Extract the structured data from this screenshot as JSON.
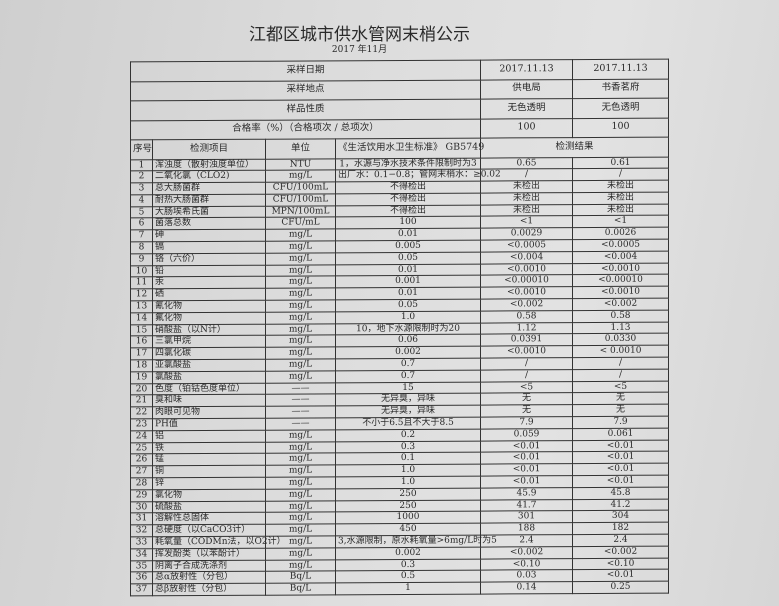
{
  "title": "江都区城市供水管网末梢公示",
  "subtitle": "2017 年11月",
  "meta": [
    {
      "label": "采样日期",
      "v1": "2017.11.13",
      "v2": "2017.11.13"
    },
    {
      "label": "采样地点",
      "v1": "供电局",
      "v2": "书香茗府"
    },
    {
      "label": "样品性质",
      "v1": "无色透明",
      "v2": "无色透明"
    },
    {
      "label": "合格率（%）（合格项次 / 总项次）",
      "v1": "100",
      "v2": "100"
    }
  ],
  "headers": {
    "no": "序号",
    "item": "检测项目",
    "unit": "单位",
    "standard": "《生活饮用水卫生标准》 GB5749",
    "result": "检测结果"
  },
  "rows": [
    [
      "1",
      "浑浊度（散射浊度单位）",
      "NTU",
      "1，水源与净水技术条件限制时为3",
      "0.65",
      "0.61"
    ],
    [
      "2",
      "二氧化氯（CLO2)",
      "mg/L",
      "出厂水：0.1−0.8；管网末梢水：≥0.02",
      "/",
      "/"
    ],
    [
      "3",
      "总大肠菌群",
      "CFU/100mL",
      "不得检出",
      "未检出",
      "未检出"
    ],
    [
      "4",
      "耐热大肠菌群",
      "CFU/100mL",
      "不得检出",
      "未检出",
      "未检出"
    ],
    [
      "5",
      "大肠埃希氏菌",
      "MPN/100mL",
      "不得检出",
      "未检出",
      "未检出"
    ],
    [
      "6",
      "菌落总数",
      "CFU/mL",
      "100",
      "<1",
      "<1"
    ],
    [
      "7",
      "砷",
      "mg/L",
      "0.01",
      "0.0029",
      "0.0026"
    ],
    [
      "8",
      "镉",
      "mg/L",
      "0.005",
      "<0.0005",
      "<0.0005"
    ],
    [
      "9",
      "铬（六价）",
      "mg/L",
      "0.05",
      "<0.004",
      "<0.004"
    ],
    [
      "10",
      "铅",
      "mg/L",
      "0.01",
      "<0.0010",
      "<0.0010"
    ],
    [
      "11",
      "汞",
      "mg/L",
      "0.001",
      "<0.00010",
      "<0.00010"
    ],
    [
      "12",
      "硒",
      "mg/L",
      "0.01",
      "<0.0010",
      "<0.0010"
    ],
    [
      "13",
      "氰化物",
      "mg/L",
      "0.05",
      "<0.002",
      "<0.002"
    ],
    [
      "14",
      "氟化物",
      "mg/L",
      "1.0",
      "0.58",
      "0.58"
    ],
    [
      "15",
      "硝酸盐（以N计）",
      "mg/L",
      "10，地下水源限制时为20",
      "1.12",
      "1.13"
    ],
    [
      "16",
      "三氯甲烷",
      "mg/L",
      "0.06",
      "0.0391",
      "0.0330"
    ],
    [
      "17",
      "四氯化碳",
      "mg/L",
      "0.002",
      "<0.0010",
      "< 0.0010"
    ],
    [
      "18",
      "亚氯酸盐",
      "mg/L",
      "0.7",
      "/",
      "/"
    ],
    [
      "19",
      "氯酸盐",
      "mg/L",
      "0.7",
      "/",
      "/"
    ],
    [
      "20",
      "色度（铂钴色度单位）",
      "——",
      "15",
      "<5",
      "<5"
    ],
    [
      "21",
      "臭和味",
      "——",
      "无异臭，异味",
      "无",
      "无"
    ],
    [
      "22",
      "肉眼可见物",
      "——",
      "无异臭，异味",
      "无",
      "无"
    ],
    [
      "23",
      "PH值",
      "——",
      "不小于6.5且不大于8.5",
      "7.9",
      "7.9"
    ],
    [
      "24",
      "铝",
      "mg/L",
      "0.2",
      "0.059",
      "0.061"
    ],
    [
      "25",
      "铁",
      "mg/L",
      "0.3",
      "<0.01",
      "<0.01"
    ],
    [
      "26",
      "锰",
      "mg/L",
      "0.1",
      "<0.01",
      "<0.01"
    ],
    [
      "27",
      "铜",
      "mg/L",
      "1.0",
      "<0.01",
      "<0.01"
    ],
    [
      "28",
      "锌",
      "mg/L",
      "1.0",
      "<0.01",
      "<0.01"
    ],
    [
      "29",
      "氯化物",
      "mg/L",
      "250",
      "45.9",
      "45.8"
    ],
    [
      "30",
      "硫酸盐",
      "mg/L",
      "250",
      "41.7",
      "41.2"
    ],
    [
      "31",
      "溶解性总固体",
      "mg/L",
      "1000",
      "301",
      "304"
    ],
    [
      "32",
      "总硬度（以CaCO3计）",
      "mg/L",
      "450",
      "188",
      "182"
    ],
    [
      "33",
      "耗氧量（CODMn法，以O2计）",
      "mg/L",
      "3,水源限制，原水耗氧量>6mg/L时为5",
      "2.4",
      "2.4"
    ],
    [
      "34",
      "挥发酚类（以苯酚计）",
      "mg/L",
      "0.002",
      "<0.002",
      "<0.002"
    ],
    [
      "35",
      "阴离子合成洗涤剂",
      "mg/L",
      "0.3",
      "<0.10",
      "<0.10"
    ],
    [
      "36",
      "总α放射性（分包）",
      "Bq/L",
      "0.5",
      "0.03",
      "<0.01"
    ],
    [
      "37",
      "总β放射性（分包）",
      "Bq/L",
      "1",
      "0.14",
      "0.25"
    ]
  ]
}
